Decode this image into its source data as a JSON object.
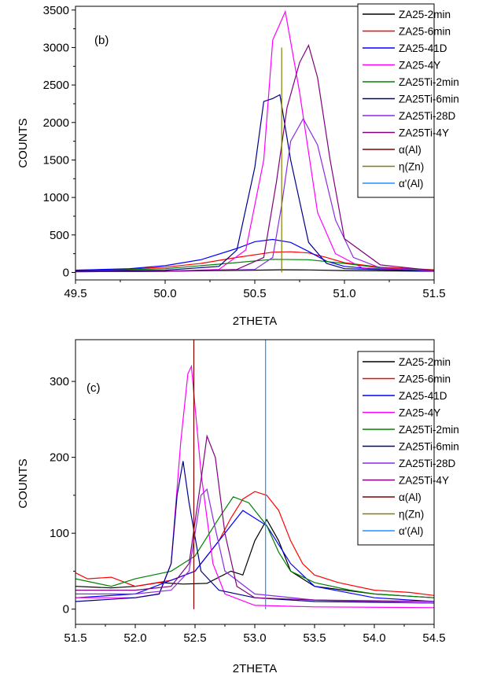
{
  "chart_data": [
    {
      "type": "line",
      "panel_label": "(b)",
      "xlabel": "2THETA",
      "ylabel": "COUNTS",
      "xlim": [
        49.5,
        51.5
      ],
      "ylim": [
        -100,
        3550
      ],
      "xticks": [
        49.5,
        50.0,
        50.5,
        51.0,
        51.5
      ],
      "xtick_labels": [
        "49.5",
        "50.0",
        "50.5",
        "51.0",
        "51.5"
      ],
      "yticks": [
        0,
        500,
        1000,
        1500,
        2000,
        2500,
        3000,
        3500
      ],
      "ytick_labels": [
        "0",
        "500",
        "1000",
        "1500",
        "2000",
        "2500",
        "3000",
        "3500"
      ],
      "grid": false,
      "legend_position": "top-right",
      "series": [
        {
          "name": "ZA25-2min",
          "color": "#000000",
          "x": [
            49.5,
            50.0,
            50.5,
            50.65,
            50.8,
            51.0,
            51.5
          ],
          "y": [
            10,
            15,
            30,
            35,
            33,
            25,
            15
          ]
        },
        {
          "name": "ZA25-6min",
          "color": "#ff0000",
          "x": [
            49.5,
            49.8,
            50.0,
            50.2,
            50.4,
            50.6,
            50.7,
            50.8,
            50.9,
            51.0,
            51.2,
            51.5
          ],
          "y": [
            30,
            45,
            70,
            120,
            200,
            270,
            275,
            260,
            200,
            130,
            70,
            35
          ]
        },
        {
          "name": "ZA25-41D",
          "color": "#0000ff",
          "x": [
            49.5,
            49.8,
            50.0,
            50.2,
            50.4,
            50.5,
            50.6,
            50.7,
            50.8,
            50.9,
            51.0,
            51.2,
            51.5
          ],
          "y": [
            30,
            50,
            90,
            170,
            320,
            410,
            440,
            400,
            280,
            150,
            80,
            40,
            20
          ]
        },
        {
          "name": "ZA25-4Y",
          "color": "#ff00ff",
          "x": [
            49.5,
            50.0,
            50.3,
            50.45,
            50.55,
            50.6,
            50.67,
            50.75,
            50.85,
            50.95,
            51.1,
            51.5
          ],
          "y": [
            10,
            15,
            40,
            300,
            1500,
            3100,
            3480,
            2400,
            800,
            250,
            60,
            20
          ]
        },
        {
          "name": "ZA25Ti-2min",
          "color": "#008000",
          "x": [
            49.5,
            50.0,
            50.3,
            50.6,
            50.8,
            51.0,
            51.2,
            51.5
          ],
          "y": [
            20,
            50,
            110,
            175,
            170,
            120,
            60,
            30
          ]
        },
        {
          "name": "ZA25Ti-6min",
          "color": "#00008b",
          "x": [
            49.5,
            50.0,
            50.3,
            50.4,
            50.5,
            50.55,
            50.6,
            50.64,
            50.7,
            50.8,
            50.9,
            51.0,
            51.5
          ],
          "y": [
            20,
            30,
            80,
            300,
            1400,
            2280,
            2320,
            2370,
            1500,
            400,
            120,
            50,
            20
          ]
        },
        {
          "name": "ZA25Ti-28D",
          "color": "#8a2be2",
          "x": [
            49.5,
            50.0,
            50.5,
            50.6,
            50.65,
            50.7,
            50.77,
            50.85,
            50.95,
            51.05,
            51.2,
            51.5
          ],
          "y": [
            10,
            15,
            40,
            200,
            900,
            1750,
            2050,
            1700,
            700,
            200,
            60,
            20
          ]
        },
        {
          "name": "ZA25Ti-4Y",
          "color": "#800080",
          "x": [
            49.5,
            50.0,
            50.4,
            50.55,
            50.62,
            50.68,
            50.75,
            50.8,
            50.85,
            50.92,
            51.0,
            51.2,
            51.5
          ],
          "y": [
            10,
            15,
            40,
            200,
            1200,
            2200,
            2800,
            3030,
            2600,
            1500,
            450,
            100,
            25
          ]
        }
      ],
      "reference_lines": [
        {
          "name": "α(Al)",
          "color": "#800000",
          "x": null
        },
        {
          "name": "η(Zn)",
          "color": "#808000",
          "x": 50.65,
          "y_top": 3000
        },
        {
          "name": "α'(Al)",
          "color": "#1e90ff",
          "x": null
        }
      ]
    },
    {
      "type": "line",
      "panel_label": "(c)",
      "xlabel": "2THETA",
      "ylabel": "COUNTS",
      "xlim": [
        51.5,
        54.5
      ],
      "ylim": [
        -20,
        355
      ],
      "xticks": [
        51.5,
        52.0,
        52.5,
        53.0,
        53.5,
        54.0,
        54.5
      ],
      "xtick_labels": [
        "51.5",
        "52.0",
        "52.5",
        "53.0",
        "53.5",
        "54.0",
        "54.5"
      ],
      "yticks": [
        0,
        100,
        200,
        300
      ],
      "ytick_labels": [
        "0",
        "100",
        "200",
        "300"
      ],
      "grid": false,
      "legend_position": "top-right",
      "series": [
        {
          "name": "ZA25-2min",
          "color": "#000000",
          "x": [
            51.5,
            51.8,
            52.0,
            52.2,
            52.4,
            52.6,
            52.8,
            52.9,
            53.0,
            53.1,
            53.2,
            53.3,
            53.5,
            54.0,
            54.5
          ],
          "y": [
            30,
            28,
            30,
            35,
            33,
            34,
            50,
            45,
            90,
            118,
            90,
            50,
            30,
            20,
            15
          ]
        },
        {
          "name": "ZA25-6min",
          "color": "#ff0000",
          "x": [
            51.5,
            51.6,
            51.8,
            52.0,
            52.3,
            52.5,
            52.7,
            52.8,
            52.9,
            53.0,
            53.1,
            53.2,
            53.3,
            53.4,
            53.5,
            53.7,
            54.0,
            54.3,
            54.5
          ],
          "y": [
            48,
            40,
            42,
            30,
            38,
            50,
            90,
            120,
            145,
            155,
            150,
            130,
            90,
            60,
            45,
            35,
            25,
            22,
            18
          ]
        },
        {
          "name": "ZA25-41D",
          "color": "#0000ff",
          "x": [
            51.5,
            52.0,
            52.5,
            52.7,
            52.9,
            53.1,
            53.3,
            53.5,
            54.0,
            54.5
          ],
          "y": [
            15,
            20,
            50,
            90,
            130,
            110,
            60,
            30,
            15,
            10
          ]
        },
        {
          "name": "ZA25-4Y",
          "color": "#ff00ff",
          "x": [
            51.5,
            52.0,
            52.2,
            52.3,
            52.38,
            52.44,
            52.47,
            52.55,
            52.65,
            52.75,
            53.0,
            53.5,
            54.5
          ],
          "y": [
            15,
            15,
            20,
            60,
            220,
            310,
            320,
            180,
            60,
            20,
            5,
            3,
            2
          ]
        },
        {
          "name": "ZA25Ti-2min",
          "color": "#008000",
          "x": [
            51.5,
            51.8,
            52.0,
            52.3,
            52.5,
            52.7,
            52.82,
            52.95,
            53.1,
            53.2,
            53.3,
            53.5,
            53.8,
            54.0,
            54.5
          ],
          "y": [
            40,
            30,
            40,
            50,
            70,
            120,
            148,
            140,
            110,
            75,
            50,
            35,
            25,
            20,
            15
          ]
        },
        {
          "name": "ZA25Ti-6min",
          "color": "#00008b",
          "x": [
            51.5,
            52.0,
            52.2,
            52.3,
            52.35,
            52.4,
            52.45,
            52.55,
            52.7,
            53.0,
            53.5,
            54.5
          ],
          "y": [
            10,
            15,
            20,
            60,
            150,
            195,
            140,
            50,
            25,
            15,
            10,
            8
          ]
        },
        {
          "name": "ZA25Ti-28D",
          "color": "#8a2be2",
          "x": [
            51.5,
            52.0,
            52.3,
            52.45,
            52.5,
            52.55,
            52.6,
            52.65,
            52.75,
            53.0,
            53.5,
            54.5
          ],
          "y": [
            20,
            20,
            25,
            50,
            100,
            150,
            158,
            120,
            50,
            20,
            12,
            8
          ]
        },
        {
          "name": "ZA25Ti-4Y",
          "color": "#800080",
          "x": [
            51.5,
            52.0,
            52.3,
            52.45,
            52.55,
            52.6,
            52.67,
            52.75,
            52.85,
            53.0,
            53.5,
            54.5
          ],
          "y": [
            25,
            25,
            30,
            60,
            170,
            228,
            200,
            100,
            30,
            15,
            12,
            10
          ]
        }
      ],
      "reference_lines": [
        {
          "name": "α(Al)",
          "color": "#800000",
          "x": 52.49,
          "y_top": 380
        },
        {
          "name": "η(Zn)",
          "color": "#808000",
          "x": null
        },
        {
          "name": "α'(Al)",
          "color": "#1e90ff",
          "x": 53.09,
          "y_top": 380
        }
      ]
    }
  ]
}
